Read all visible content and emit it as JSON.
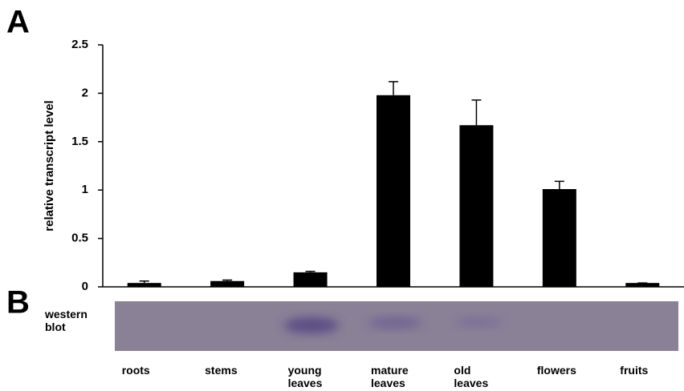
{
  "chart_data": {
    "type": "bar",
    "panel_labels": [
      "A",
      "B"
    ],
    "ylabel": "relative transcript level",
    "categories": [
      "roots",
      "stems",
      "young leaves",
      "mature leaves",
      "old leaves",
      "flowers",
      "fruits"
    ],
    "values": [
      0.04,
      0.06,
      0.15,
      1.98,
      1.67,
      1.01,
      0.04
    ],
    "errors": [
      0.02,
      0.01,
      0.01,
      0.14,
      0.26,
      0.08,
      0
    ],
    "color": "#000000",
    "ylim": [
      0,
      2.5
    ],
    "yticks": [
      0,
      0.5,
      1,
      1.5,
      2,
      2.5
    ],
    "grid": false,
    "blot_label": "western blot"
  }
}
